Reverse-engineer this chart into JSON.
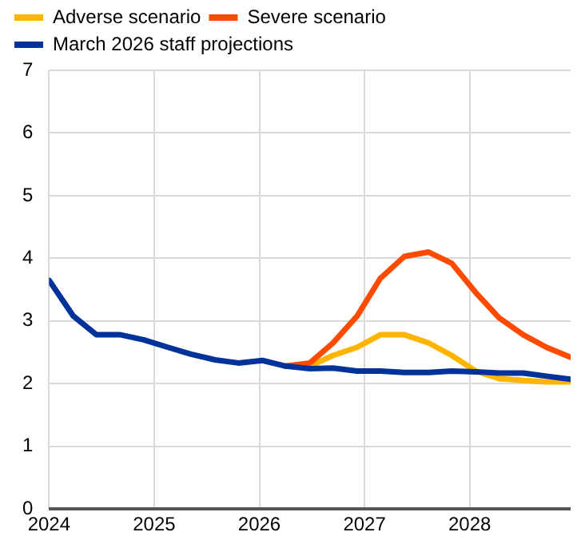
{
  "chart_data": {
    "type": "line",
    "x": [
      2024,
      2024.23,
      2024.45,
      2024.68,
      2024.9,
      2025.13,
      2025.35,
      2025.58,
      2025.8,
      2026.03,
      2026.25,
      2026.48,
      2026.7,
      2026.93,
      2027.15,
      2027.38,
      2027.61,
      2027.83,
      2028.06,
      2028.28,
      2028.51,
      2028.73,
      2028.96
    ],
    "series": [
      {
        "name": "Adverse scenario",
        "color": "#ffb400",
        "values": [
          null,
          null,
          null,
          null,
          null,
          null,
          null,
          null,
          null,
          null,
          2.28,
          2.28,
          2.45,
          2.58,
          2.78,
          2.78,
          2.65,
          2.45,
          2.2,
          2.08,
          2.05,
          2.03,
          2.03
        ]
      },
      {
        "name": "Severe scenario",
        "color": "#ff4b00",
        "values": [
          null,
          null,
          null,
          null,
          null,
          null,
          null,
          null,
          null,
          null,
          2.28,
          2.33,
          2.65,
          3.08,
          3.68,
          4.03,
          4.1,
          3.92,
          3.45,
          3.05,
          2.78,
          2.58,
          2.42
        ]
      },
      {
        "name": "March 2026 staff projections",
        "color": "#003299",
        "values": [
          3.65,
          3.08,
          2.78,
          2.78,
          2.7,
          2.58,
          2.47,
          2.38,
          2.33,
          2.37,
          2.28,
          2.24,
          2.25,
          2.2,
          2.2,
          2.18,
          2.18,
          2.2,
          2.19,
          2.17,
          2.17,
          2.12,
          2.07
        ]
      }
    ],
    "xlim": [
      2024,
      2028.96
    ],
    "xticks": [
      2024,
      2025,
      2026,
      2027,
      2028
    ],
    "ylim": [
      0,
      7
    ],
    "yticks": [
      0,
      1,
      2,
      3,
      4,
      5,
      6,
      7
    ],
    "grid": true,
    "legend": "top left",
    "marker": "none",
    "line_style": "solid"
  }
}
